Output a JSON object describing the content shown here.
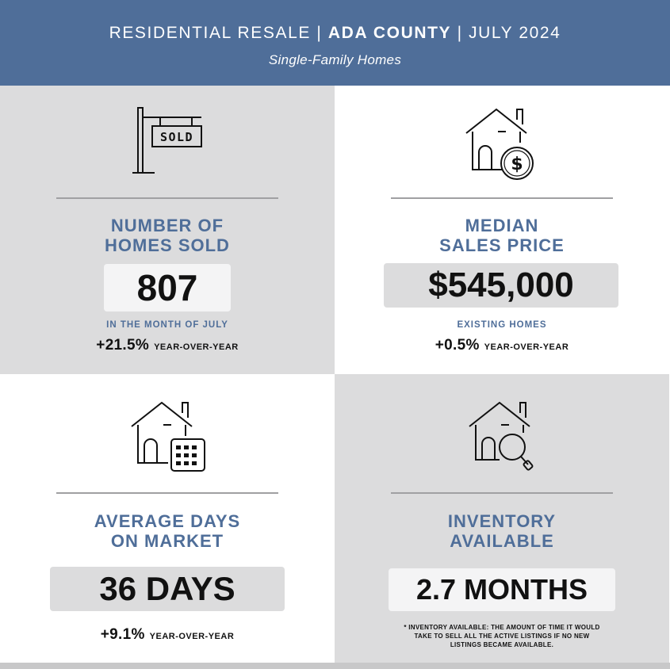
{
  "header": {
    "title_pre": "RESIDENTIAL RESALE | ",
    "title_bold": "ADA COUNTY",
    "title_post": " | JULY 2024",
    "subtitle": "Single-Family Homes",
    "background_color": "#4f6e99"
  },
  "colors": {
    "accent_blue": "#4f6e99",
    "panel_gray": "#dcdcdd",
    "value_box_light": "#f4f4f5",
    "value_box_dark": "#dcdcdd"
  },
  "panels": {
    "homes_sold": {
      "icon": "sold-sign-icon",
      "sign_text": "SOLD",
      "heading_line1": "NUMBER OF",
      "heading_line2": "HOMES SOLD",
      "value": "807",
      "sublabel": "IN THE MONTH OF JULY",
      "yoy_value": "+21.5%",
      "yoy_label": "YEAR-OVER-YEAR"
    },
    "median_price": {
      "icon": "house-dollar-icon",
      "heading_line1": "MEDIAN",
      "heading_line2": "SALES PRICE",
      "value": "$545,000",
      "sublabel": "EXISTING HOMES",
      "yoy_value": "+0.5%",
      "yoy_label": "YEAR-OVER-YEAR"
    },
    "days_on_market": {
      "icon": "house-calendar-icon",
      "heading_line1": "AVERAGE DAYS",
      "heading_line2": "ON MARKET",
      "value": "36 DAYS",
      "yoy_value": "+9.1%",
      "yoy_label": "YEAR-OVER-YEAR"
    },
    "inventory": {
      "icon": "house-search-icon",
      "heading_line1": "INVENTORY",
      "heading_line2": "AVAILABLE",
      "value": "2.7 MONTHS",
      "footnote_line1": "* INVENTORY AVAILABLE: THE AMOUNT OF TIME IT WOULD",
      "footnote_line2": "TAKE TO SELL ALL THE ACTIVE LISTINGS IF NO NEW",
      "footnote_line3": "LISTINGS BECAME AVAILABLE."
    }
  }
}
